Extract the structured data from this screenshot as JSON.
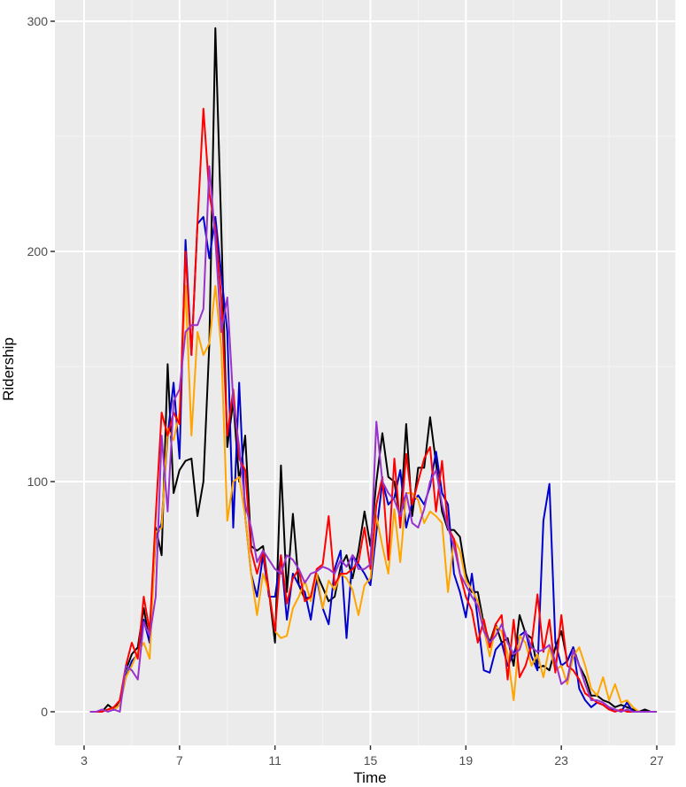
{
  "chart_data": {
    "type": "line",
    "title": "",
    "xlabel": "Time",
    "ylabel": "Ridership",
    "xlim": [
      2.2,
      27.8
    ],
    "ylim": [
      -15,
      308
    ],
    "x_ticks": [
      3,
      7,
      11,
      15,
      19,
      23,
      27
    ],
    "y_ticks": [
      0,
      100,
      200,
      300
    ],
    "grid": true,
    "legend": "none",
    "x": [
      3.25,
      3.5,
      3.75,
      4,
      4.25,
      4.5,
      4.75,
      5,
      5.25,
      5.5,
      5.75,
      6,
      6.25,
      6.5,
      6.75,
      7,
      7.25,
      7.5,
      7.75,
      8,
      8.25,
      8.5,
      8.75,
      9,
      9.25,
      9.5,
      9.75,
      10,
      10.25,
      10.5,
      10.75,
      11,
      11.25,
      11.5,
      11.75,
      12,
      12.25,
      12.5,
      12.75,
      13,
      13.25,
      13.5,
      13.75,
      14,
      14.25,
      14.5,
      14.75,
      15,
      15.25,
      15.5,
      15.75,
      16,
      16.25,
      16.5,
      16.75,
      17,
      17.25,
      17.5,
      17.75,
      18,
      18.25,
      18.5,
      18.75,
      19,
      19.25,
      19.5,
      19.75,
      20,
      20.25,
      20.5,
      20.75,
      21,
      21.25,
      21.5,
      21.75,
      22,
      22.25,
      22.5,
      22.75,
      23,
      23.25,
      23.5,
      23.75,
      24,
      24.25,
      24.5,
      24.75,
      25,
      25.25,
      25.5,
      25.75,
      26,
      26.25,
      26.5,
      26.75,
      27
    ],
    "series": [
      {
        "name": "black",
        "color": "#000000",
        "values": [
          0,
          0,
          0,
          3,
          1,
          5,
          18,
          25,
          28,
          45,
          30,
          80,
          68,
          151,
          95,
          105,
          109,
          110,
          85,
          100,
          160,
          297,
          210,
          115,
          135,
          100,
          120,
          72,
          70,
          72,
          52,
          30,
          107,
          52,
          86,
          55,
          49,
          50,
          60,
          54,
          48,
          50,
          63,
          68,
          58,
          70,
          87,
          72,
          100,
          121,
          102,
          100,
          83,
          125,
          85,
          106,
          106,
          128,
          108,
          87,
          79,
          79,
          76,
          60,
          52,
          52,
          38,
          30,
          38,
          30,
          32,
          20,
          42,
          34,
          32,
          19,
          20,
          18,
          28,
          35,
          22,
          28,
          20,
          15,
          7,
          7,
          5,
          4,
          2,
          3,
          2,
          1,
          0,
          1,
          0,
          0
        ]
      },
      {
        "name": "blue",
        "color": "#0000cc",
        "values": [
          0,
          0,
          0,
          1,
          1,
          3,
          15,
          22,
          25,
          40,
          30,
          75,
          82,
          120,
          143,
          110,
          205,
          155,
          212,
          215,
          197,
          215,
          190,
          165,
          80,
          143,
          85,
          60,
          50,
          68,
          50,
          50,
          68,
          40,
          60,
          55,
          52,
          40,
          58,
          45,
          38,
          62,
          70,
          32,
          68,
          64,
          60,
          55,
          78,
          100,
          90,
          93,
          105,
          80,
          91,
          94,
          90,
          98,
          113,
          95,
          90,
          60,
          52,
          41,
          60,
          40,
          18,
          17,
          27,
          30,
          20,
          25,
          33,
          35,
          24,
          18,
          83,
          99,
          30,
          20,
          22,
          28,
          10,
          5,
          2,
          4,
          3,
          1,
          1,
          0,
          4,
          0,
          0,
          0,
          0,
          0
        ]
      },
      {
        "name": "orange",
        "color": "#ffa500",
        "values": [
          0,
          0,
          0,
          1,
          1,
          3,
          15,
          20,
          26,
          30,
          23,
          78,
          80,
          123,
          118,
          130,
          185,
          120,
          165,
          155,
          160,
          185,
          158,
          83,
          100,
          102,
          85,
          60,
          42,
          60,
          52,
          35,
          32,
          33,
          45,
          50,
          57,
          48,
          60,
          45,
          57,
          53,
          60,
          58,
          53,
          42,
          55,
          58,
          85,
          72,
          60,
          88,
          65,
          95,
          95,
          92,
          82,
          87,
          85,
          82,
          52,
          75,
          70,
          57,
          53,
          48,
          36,
          24,
          37,
          35,
          25,
          5,
          33,
          30,
          20,
          25,
          15,
          28,
          18,
          20,
          12,
          24,
          28,
          20,
          10,
          7,
          15,
          5,
          12,
          4,
          5,
          2,
          0,
          0,
          0,
          0
        ]
      },
      {
        "name": "red",
        "color": "#ff0000",
        "values": [
          0,
          0,
          0,
          1,
          2,
          5,
          20,
          30,
          23,
          50,
          35,
          85,
          130,
          120,
          130,
          125,
          200,
          155,
          212,
          262,
          225,
          210,
          180,
          120,
          140,
          110,
          105,
          70,
          60,
          70,
          52,
          35,
          68,
          47,
          58,
          62,
          48,
          50,
          62,
          64,
          85,
          55,
          60,
          60,
          62,
          65,
          80,
          62,
          90,
          102,
          66,
          110,
          80,
          112,
          90,
          100,
          110,
          115,
          87,
          109,
          80,
          75,
          60,
          50,
          44,
          30,
          40,
          28,
          38,
          42,
          14,
          40,
          15,
          20,
          29,
          51,
          26,
          40,
          17,
          42,
          20,
          18,
          14,
          8,
          6,
          4,
          3,
          1,
          0,
          1,
          0,
          0,
          0,
          0,
          0,
          0
        ]
      },
      {
        "name": "purple",
        "color": "#9932cc",
        "values": [
          0,
          0,
          1,
          0,
          1,
          0,
          20,
          18,
          14,
          39,
          33,
          50,
          120,
          87,
          135,
          140,
          165,
          168,
          168,
          175,
          237,
          205,
          165,
          180,
          135,
          115,
          90,
          80,
          65,
          70,
          66,
          62,
          60,
          68,
          66,
          62,
          56,
          60,
          61,
          63,
          62,
          60,
          66,
          63,
          68,
          62,
          62,
          64,
          126,
          100,
          95,
          92,
          85,
          95,
          82,
          80,
          88,
          100,
          105,
          90,
          80,
          72,
          60,
          55,
          50,
          46,
          35,
          30,
          33,
          38,
          30,
          25,
          27,
          35,
          28,
          26,
          27,
          29,
          22,
          12,
          14,
          27,
          20,
          12,
          5,
          5,
          4,
          2,
          1,
          0,
          1,
          0,
          0,
          0,
          0,
          0
        ]
      }
    ]
  }
}
